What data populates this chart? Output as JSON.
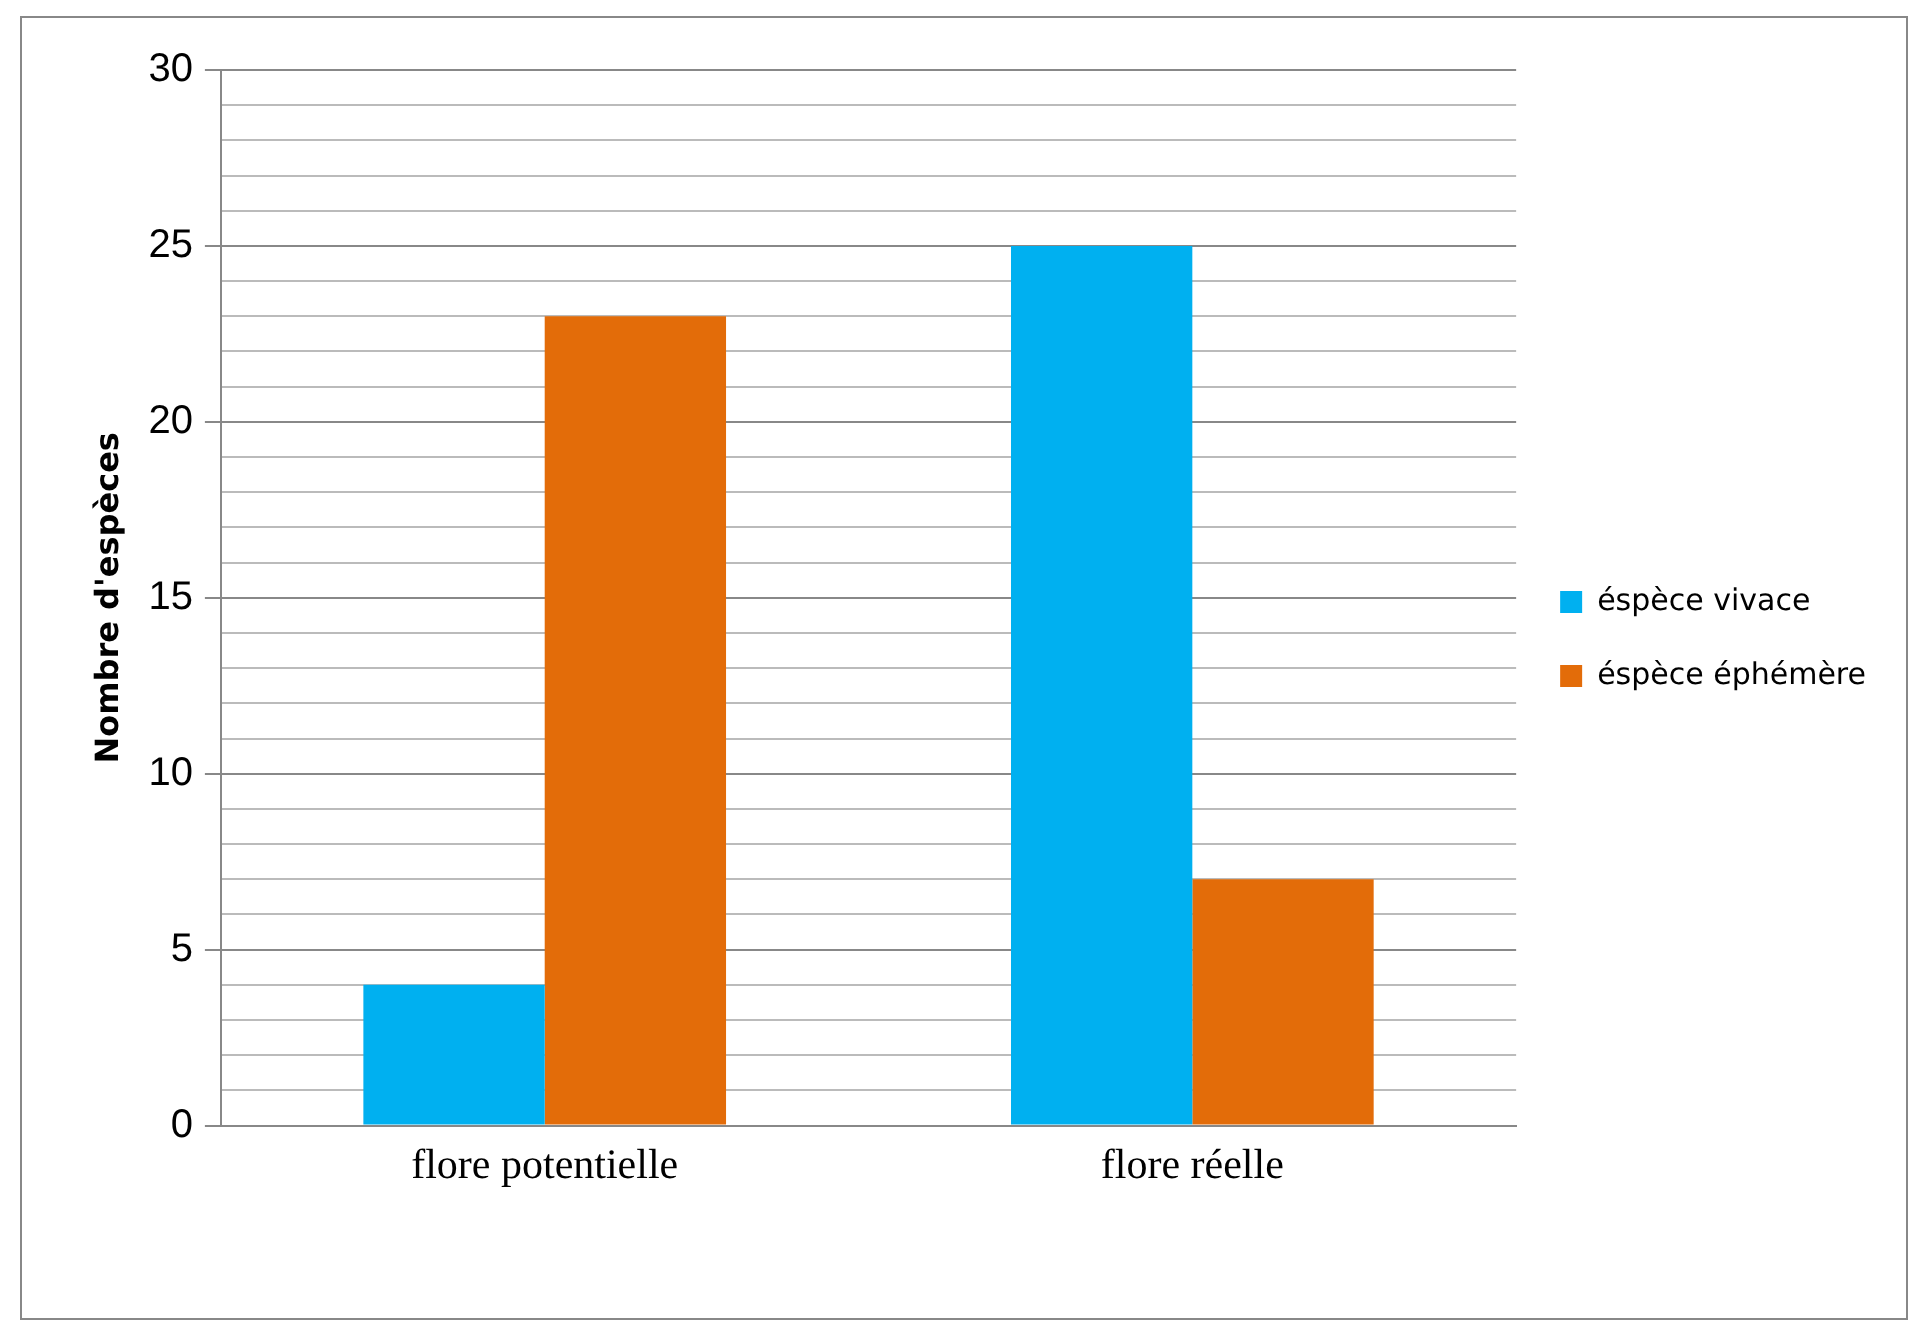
{
  "chart_data": {
    "type": "bar",
    "ylabel": "Nombre d'espèces",
    "categories": [
      "flore potentielle",
      "flore réelle"
    ],
    "series": [
      {
        "name": "éspèce vivace",
        "color": "#00b0f0",
        "values": [
          4,
          25
        ]
      },
      {
        "name": "éspèce éphémère",
        "color": "#e36c09",
        "values": [
          23,
          7
        ]
      }
    ],
    "ylim": [
      0,
      30
    ],
    "yticks": [
      0,
      {
        "value": 1,
        "label": null
      },
      {
        "value": 2,
        "label": null
      },
      {
        "value": 3,
        "label": null
      },
      {
        "value": 4,
        "label": null
      },
      5,
      {
        "value": 6,
        "label": null
      },
      {
        "value": 7,
        "label": null
      },
      {
        "value": 8,
        "label": null
      },
      {
        "value": 9,
        "label": null
      },
      10,
      {
        "value": 11,
        "label": null
      },
      {
        "value": 12,
        "label": null
      },
      {
        "value": 13,
        "label": null
      },
      {
        "value": 14,
        "label": null
      },
      15,
      {
        "value": 16,
        "label": null
      },
      {
        "value": 17,
        "label": null
      },
      {
        "value": 18,
        "label": null
      },
      {
        "value": 19,
        "label": null
      },
      20,
      {
        "value": 21,
        "label": null
      },
      {
        "value": 22,
        "label": null
      },
      {
        "value": 23,
        "label": null
      },
      {
        "value": 24,
        "label": null
      },
      25,
      {
        "value": 26,
        "label": null
      },
      {
        "value": 27,
        "label": null
      },
      {
        "value": 28,
        "label": null
      },
      {
        "value": 29,
        "label": null
      },
      30
    ],
    "grid": true,
    "legend": "right"
  }
}
